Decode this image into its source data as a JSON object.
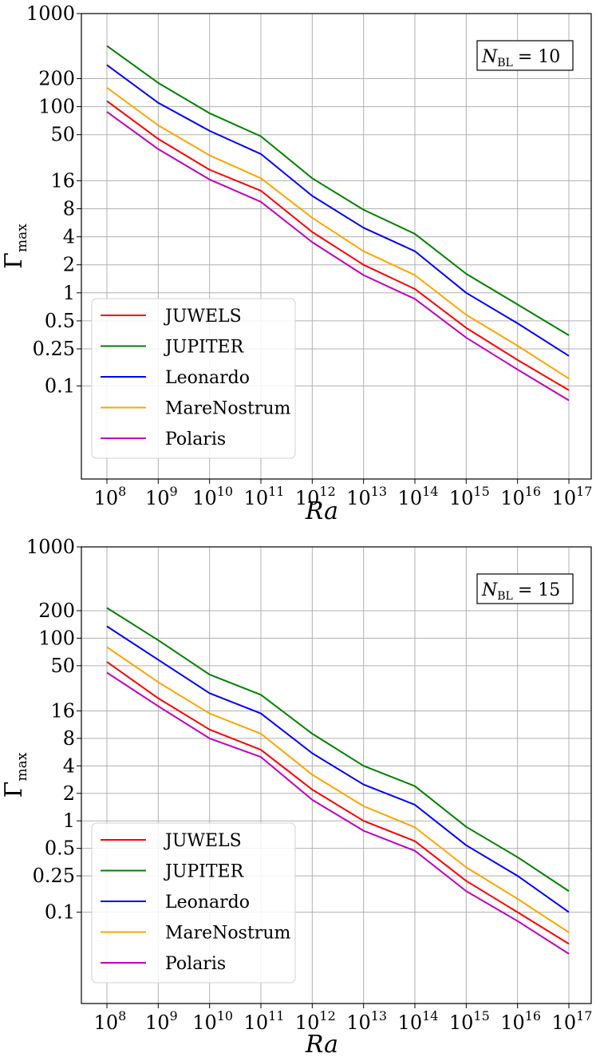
{
  "chart_data": [
    {
      "type": "line",
      "annotation": {
        "symbol": "N",
        "subscript": "BL",
        "value": "= 10"
      },
      "xlabel": "Ra",
      "ylabel": {
        "symbol": "Γ",
        "subscript": "max"
      },
      "yscale": "log",
      "xscale": "log",
      "x_exponents": [
        8,
        9,
        10,
        11,
        12,
        13,
        14,
        15,
        16,
        17
      ],
      "x_base": "10",
      "y_ticks": [
        0.1,
        0.25,
        0.5,
        1,
        2,
        4,
        8,
        16,
        50,
        100,
        200,
        1000
      ],
      "y_tick_labels": [
        "0.1",
        "0.25",
        "0.5",
        "1",
        "2",
        "4",
        "8",
        "16",
        "50",
        "100",
        "200",
        "1000"
      ],
      "ylim": [
        0.01,
        1000
      ],
      "grid": true,
      "legend_position": "lower-left",
      "series": [
        {
          "name": "JUWELS",
          "color": "#ff0000",
          "values": [
            115,
            45,
            21,
            12.5,
            4.5,
            2.0,
            1.1,
            0.42,
            0.19,
            0.09
          ]
        },
        {
          "name": "JUPITER",
          "color": "#008000",
          "values": [
            450,
            180,
            85,
            48,
            17,
            7.8,
            4.3,
            1.6,
            0.75,
            0.35
          ]
        },
        {
          "name": "Leonardo",
          "color": "#0000ff",
          "values": [
            280,
            110,
            55,
            31,
            11,
            5.0,
            2.8,
            1.0,
            0.47,
            0.21
          ]
        },
        {
          "name": "MareNostrum",
          "color": "#ffa500",
          "values": [
            160,
            63,
            30,
            17,
            6.4,
            2.8,
            1.55,
            0.58,
            0.27,
            0.12
          ]
        },
        {
          "name": "Polaris",
          "color": "#bf00bf",
          "values": [
            88,
            35,
            16.5,
            9.5,
            3.5,
            1.55,
            0.86,
            0.33,
            0.15,
            0.07
          ]
        }
      ]
    },
    {
      "type": "line",
      "annotation": {
        "symbol": "N",
        "subscript": "BL",
        "value": "= 15"
      },
      "xlabel": "Ra",
      "ylabel": {
        "symbol": "Γ",
        "subscript": "max"
      },
      "yscale": "log",
      "xscale": "log",
      "x_exponents": [
        8,
        9,
        10,
        11,
        12,
        13,
        14,
        15,
        16,
        17
      ],
      "x_base": "10",
      "y_ticks": [
        0.1,
        0.25,
        0.5,
        1,
        2,
        4,
        8,
        16,
        50,
        100,
        200,
        1000
      ],
      "y_tick_labels": [
        "0.1",
        "0.25",
        "0.5",
        "1",
        "2",
        "4",
        "8",
        "16",
        "50",
        "100",
        "200",
        "1000"
      ],
      "ylim": [
        0.01,
        1000
      ],
      "grid": true,
      "legend_position": "lower-left",
      "series": [
        {
          "name": "JUWELS",
          "color": "#ff0000",
          "values": [
            55,
            22,
            10,
            6.0,
            2.2,
            1.0,
            0.6,
            0.22,
            0.1,
            0.045
          ]
        },
        {
          "name": "JUPITER",
          "color": "#008000",
          "values": [
            215,
            95,
            40,
            24,
            9,
            4.0,
            2.4,
            0.86,
            0.4,
            0.17
          ]
        },
        {
          "name": "Leonardo",
          "color": "#0000ff",
          "values": [
            135,
            58,
            25,
            15,
            5.5,
            2.5,
            1.5,
            0.54,
            0.25,
            0.1
          ]
        },
        {
          "name": "MareNostrum",
          "color": "#ffa500",
          "values": [
            80,
            33,
            15,
            9,
            3.2,
            1.45,
            0.85,
            0.31,
            0.14,
            0.06
          ]
        },
        {
          "name": "Polaris",
          "color": "#bf00bf",
          "values": [
            42,
            18,
            8,
            5,
            1.7,
            0.78,
            0.47,
            0.17,
            0.08,
            0.035
          ]
        }
      ]
    }
  ]
}
